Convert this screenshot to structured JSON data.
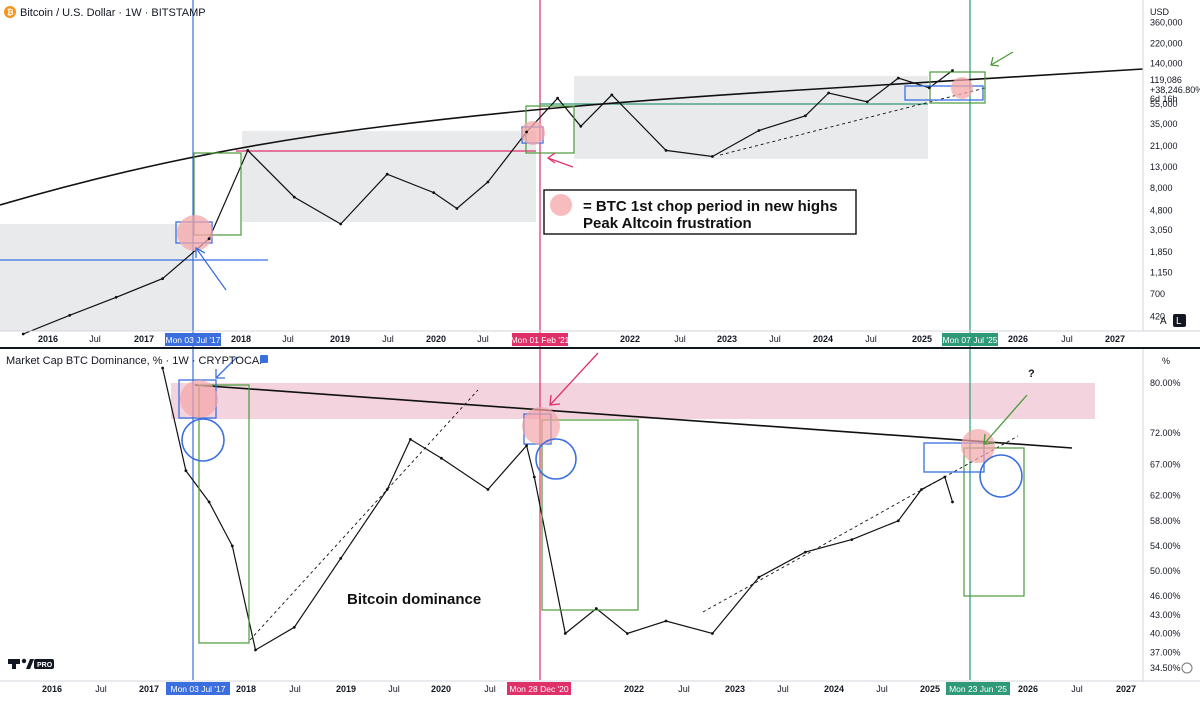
{
  "top_chart": {
    "title": "Bitcoin / U.S. Dollar · 1W · BITSTAMP",
    "currency": "USD",
    "price_labels": [
      "360,000",
      "220,000",
      "140,000",
      "55,000",
      "35,000",
      "21,000",
      "13,000",
      "8,000",
      "4,800",
      "3,050",
      "1,850",
      "1,150",
      "700",
      "420"
    ],
    "last_price": "119,086",
    "change": "+38,246.80%",
    "countdown": "6d 16h",
    "x_labels": [
      "2016",
      "Jul",
      "2017",
      "2018",
      "Jul",
      "2019",
      "Jul",
      "2020",
      "Jul",
      "2022",
      "Jul",
      "2023",
      "Jul",
      "2024",
      "Jul",
      "2025",
      "2026",
      "Jul",
      "2027"
    ],
    "date_markers": [
      "Mon 03 Jul '17",
      "Mon 01 Feb '21",
      "Mon 07 Jul '25"
    ],
    "annotation_line1": "= BTC 1st chop period in new highs",
    "annotation_line2": "Peak Altcoin frustration",
    "scale_buttons": [
      "A",
      "L"
    ]
  },
  "bottom_chart": {
    "title": "Market Cap BTC Dominance, % · 1W · CRYPTOCAP",
    "unit": "%",
    "pct_labels": [
      "80.00%",
      "72.00%",
      "67.00%",
      "62.00%",
      "58.00%",
      "54.00%",
      "50.00%",
      "46.00%",
      "43.00%",
      "40.00%",
      "37.00%",
      "34.50%"
    ],
    "x_labels": [
      "2016",
      "Jul",
      "2017",
      "2018",
      "Jul",
      "2019",
      "Jul",
      "2020",
      "Jul",
      "2022",
      "Jul",
      "2023",
      "Jul",
      "2024",
      "Jul",
      "2025",
      "2026",
      "Jul",
      "2027"
    ],
    "date_markers": [
      "Mon 03 Jul '17",
      "Mon 28 Dec '20",
      "Mon 23 Jun '25"
    ],
    "question_mark": "?",
    "annotation": "Bitcoin dominance",
    "logo_text": "PRO"
  },
  "colors": {
    "blue_marker": "#3b6fe0",
    "red_marker": "#e0306a",
    "green_marker": "#2f9a77",
    "gray_zone": "#e7e8ea",
    "pink_zone": "#f2d3de",
    "pink_dot": "#f4a5a8"
  },
  "chart_data": [
    {
      "type": "line",
      "title": "Bitcoin / U.S. Dollar · 1W · BITSTAMP",
      "yscale": "log",
      "ylim": [
        300,
        500000
      ],
      "x": [
        "2015-07",
        "2016-01",
        "2016-07",
        "2017-01",
        "2017-07",
        "2017-12",
        "2018-06",
        "2018-12",
        "2019-06",
        "2019-12",
        "2020-03",
        "2020-07",
        "2020-12",
        "2021-04",
        "2021-07",
        "2021-11",
        "2022-06",
        "2022-12",
        "2023-06",
        "2023-12",
        "2024-03",
        "2024-08",
        "2024-12",
        "2025-04",
        "2025-07"
      ],
      "series": [
        {
          "values": [
            280,
            430,
            650,
            1000,
            2500,
            19000,
            6500,
            3500,
            11000,
            7200,
            5000,
            9200,
            29000,
            63000,
            33000,
            68000,
            19000,
            16500,
            30000,
            42000,
            71000,
            58000,
            100000,
            80000,
            119086
          ]
        }
      ]
    },
    {
      "type": "line",
      "title": "Market Cap BTC Dominance, % · 1W · CRYPTOCAP",
      "ylim": [
        33,
        82
      ],
      "x": [
        "2017-01",
        "2017-04",
        "2017-07",
        "2017-10",
        "2018-01",
        "2018-06",
        "2018-12",
        "2019-06",
        "2019-09",
        "2020-01",
        "2020-07",
        "2020-12",
        "2021-01",
        "2021-05",
        "2021-09",
        "2022-01",
        "2022-06",
        "2022-12",
        "2023-06",
        "2023-12",
        "2024-06",
        "2024-12",
        "2025-03",
        "2025-06",
        "2025-07"
      ],
      "series": [
        {
          "values": [
            87,
            66,
            61,
            54,
            35,
            41,
            52,
            63,
            71,
            68,
            63,
            70,
            65,
            40,
            44,
            40,
            42,
            40,
            49,
            53,
            55,
            58,
            63,
            65,
            61
          ]
        }
      ]
    }
  ]
}
